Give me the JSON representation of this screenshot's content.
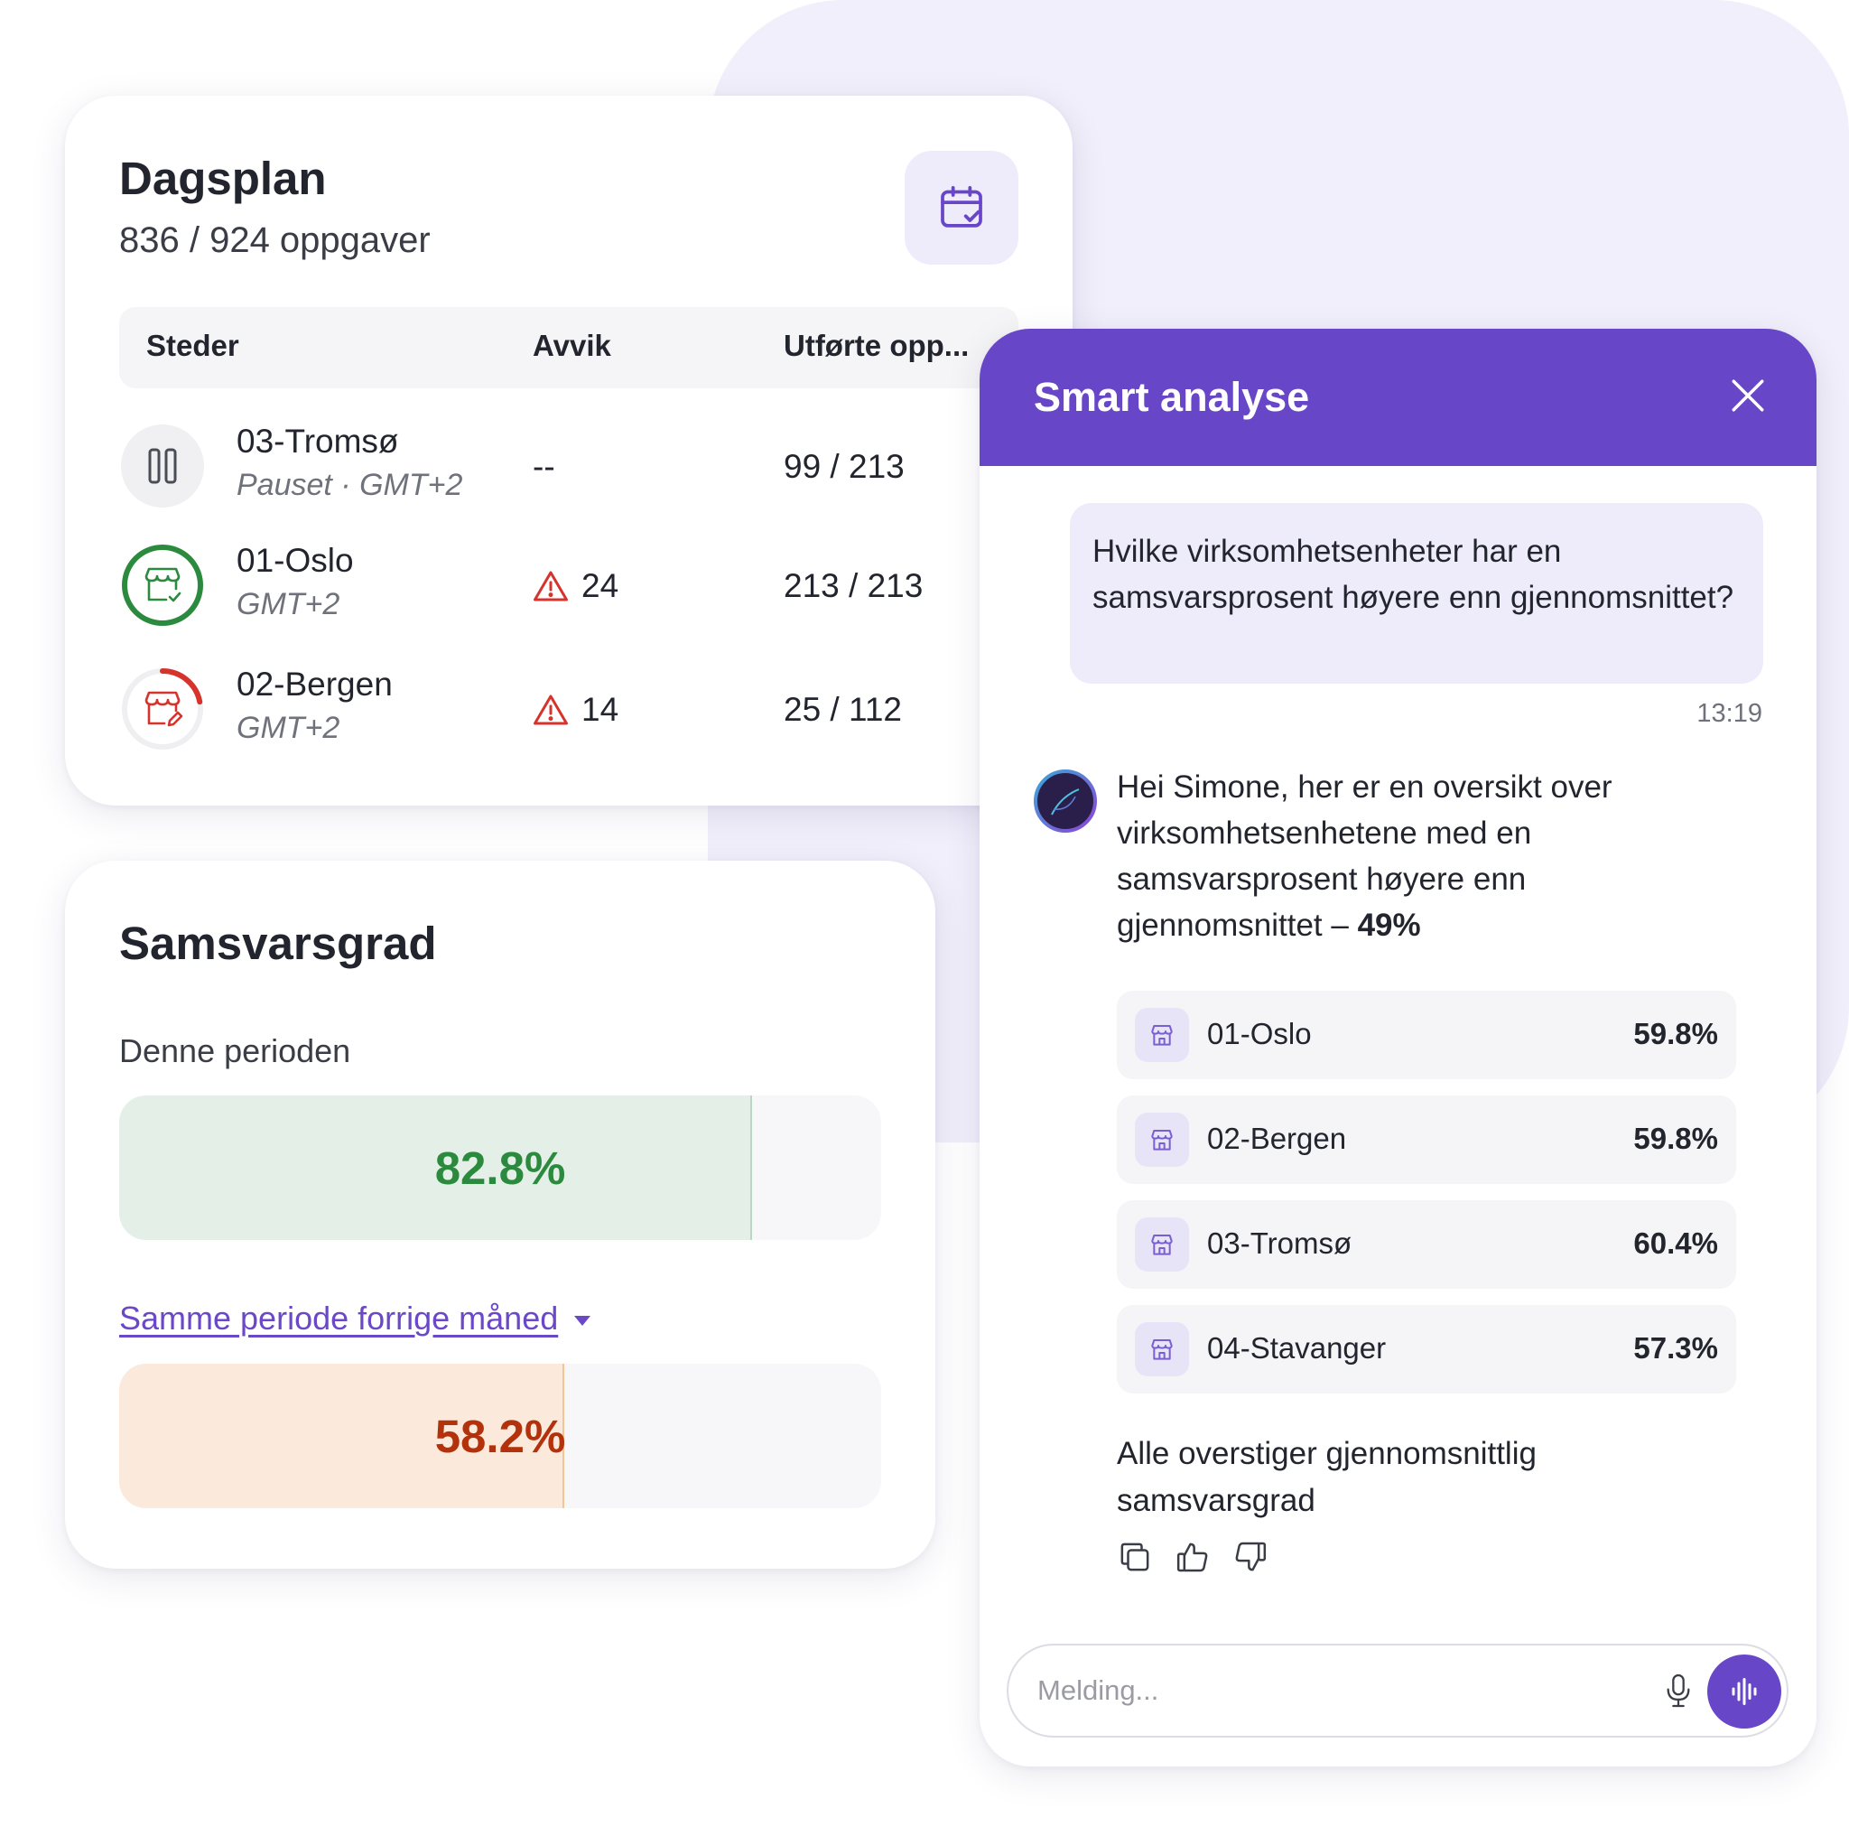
{
  "dagsplan": {
    "title": "Dagsplan",
    "subtitle": "836 / 924 oppgaver",
    "columns": [
      "Steder",
      "Avvik",
      "Utførte opp..."
    ],
    "rows": [
      {
        "name": "03-Tromsø",
        "sub": "Pauset · GMT+2",
        "avvik": "--",
        "done": "99 / 213",
        "status": "paused",
        "icon": "pause-icon"
      },
      {
        "name": "01-Oslo",
        "sub": "GMT+2",
        "avvik": "24",
        "done": "213 / 213",
        "status": "complete",
        "icon": "store-check-icon",
        "progress": 1.0
      },
      {
        "name": "02-Bergen",
        "sub": "GMT+2",
        "avvik": "14",
        "done": "25 / 112",
        "status": "in-progress",
        "icon": "store-edit-icon",
        "progress": 0.22
      }
    ]
  },
  "samsvar": {
    "title": "Samsvarsgrad",
    "period_label": "Denne perioden",
    "current_value": "82.8%",
    "current_fraction": 0.828,
    "compare_label": "Samme periode forrige måned",
    "prev_value": "58.2%",
    "prev_fraction": 0.582
  },
  "chat": {
    "title": "Smart analyse",
    "user_message": "Hvilke virksomhetsenheter har en samsvarsprosent høyere enn gjennomsnittet?",
    "timestamp": "13:19",
    "bot_message": "Hei Simone, her er en oversikt over virksomhetsenhetene med en samsvarsprosent høyere enn gjennomsnittet –",
    "bot_highlight": "49%",
    "results": [
      {
        "name": "01-Oslo",
        "value": "59.8%"
      },
      {
        "name": "02-Bergen",
        "value": "59.8%"
      },
      {
        "name": "03-Tromsø",
        "value": "60.4%"
      },
      {
        "name": "04-Stavanger",
        "value": "57.3%"
      }
    ],
    "summary": "Alle overstiger gjennomsnittlig samsvarsgrad",
    "input_placeholder": "Melding..."
  },
  "colors": {
    "accent": "#6846c8",
    "success": "#2b8a3e",
    "danger": "#d6332c",
    "warning_text": "#b3310b"
  }
}
